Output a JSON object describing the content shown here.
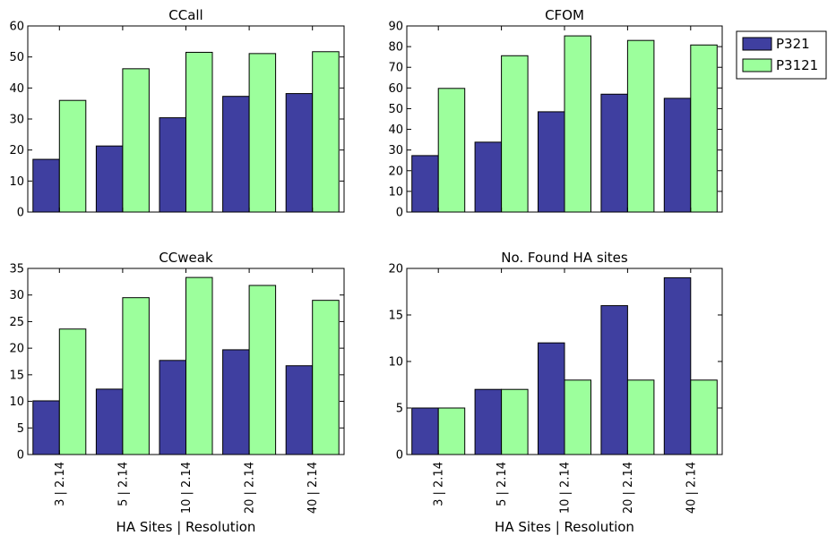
{
  "chart_data": [
    {
      "type": "bar",
      "title": "CCall",
      "categories": [
        "3 | 2.14",
        "5 | 2.14",
        "10 | 2.14",
        "20 | 2.14",
        "40 | 2.14"
      ],
      "series": [
        {
          "name": "P321",
          "values": [
            17,
            21.3,
            30.4,
            37.3,
            38.2
          ]
        },
        {
          "name": "P3121",
          "values": [
            36,
            46.2,
            51.5,
            51.1,
            51.7
          ]
        }
      ],
      "ylim": [
        0,
        60
      ],
      "yticks": [
        0,
        10,
        20,
        30,
        40,
        50,
        60
      ],
      "show_xticklabels": false,
      "xlabel": "",
      "ylabel": ""
    },
    {
      "type": "bar",
      "title": "CFOM",
      "categories": [
        "3 | 2.14",
        "5 | 2.14",
        "10 | 2.14",
        "20 | 2.14",
        "40 | 2.14"
      ],
      "series": [
        {
          "name": "P321",
          "values": [
            27.3,
            33.8,
            48.5,
            57,
            55
          ]
        },
        {
          "name": "P3121",
          "values": [
            59.8,
            75.6,
            85.2,
            83,
            80.8
          ]
        }
      ],
      "ylim": [
        0,
        90
      ],
      "yticks": [
        0,
        10,
        20,
        30,
        40,
        50,
        60,
        70,
        80,
        90
      ],
      "show_xticklabels": false,
      "xlabel": "",
      "ylabel": ""
    },
    {
      "type": "bar",
      "title": "CCweak",
      "categories": [
        "3 | 2.14",
        "5 | 2.14",
        "10 | 2.14",
        "20 | 2.14",
        "40 | 2.14"
      ],
      "series": [
        {
          "name": "P321",
          "values": [
            10.1,
            12.3,
            17.7,
            19.7,
            16.7
          ]
        },
        {
          "name": "P3121",
          "values": [
            23.6,
            29.5,
            33.3,
            31.8,
            29
          ]
        }
      ],
      "ylim": [
        0,
        35
      ],
      "yticks": [
        0,
        5,
        10,
        15,
        20,
        25,
        30,
        35
      ],
      "show_xticklabels": true,
      "xlabel": "HA Sites | Resolution",
      "ylabel": ""
    },
    {
      "type": "bar",
      "title": "No. Found HA sites",
      "categories": [
        "3 | 2.14",
        "5 | 2.14",
        "10 | 2.14",
        "20 | 2.14",
        "40 | 2.14"
      ],
      "series": [
        {
          "name": "P321",
          "values": [
            5,
            7,
            12,
            16,
            19
          ]
        },
        {
          "name": "P3121",
          "values": [
            5,
            7,
            8,
            8,
            8
          ]
        }
      ],
      "ylim": [
        0,
        20
      ],
      "yticks": [
        0,
        5,
        10,
        15,
        20
      ],
      "show_xticklabels": true,
      "xlabel": "HA Sites | Resolution",
      "ylabel": ""
    }
  ],
  "legend": {
    "placement": "outside-top-right",
    "entries": [
      {
        "label": "P321",
        "color": "#3f3fa0"
      },
      {
        "label": "P3121",
        "color": "#9cff9c"
      }
    ]
  },
  "colors": {
    "P321": "#3f3fa0",
    "P3121": "#9cff9c",
    "edge": "#000000"
  }
}
